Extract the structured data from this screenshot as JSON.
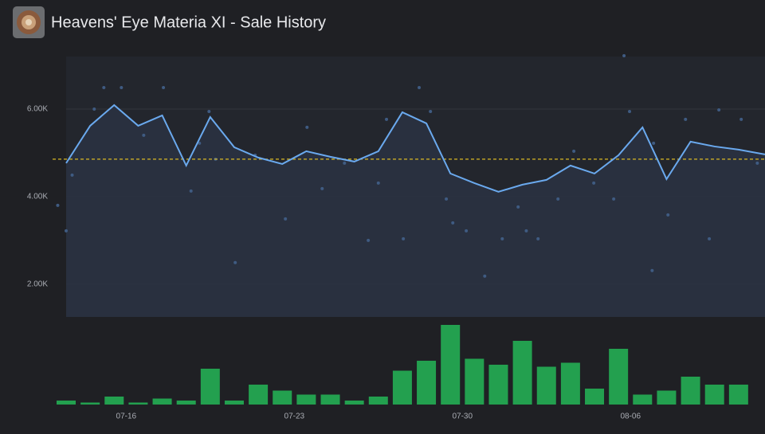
{
  "chart_data": {
    "type": "line",
    "title": "Heavens' Eye Materia XI - Sale History",
    "xlim": [
      13.5,
      42.6
    ],
    "xticks": [
      {
        "value": 16,
        "label": "07-16"
      },
      {
        "value": 23,
        "label": "07-23"
      },
      {
        "value": 30,
        "label": "07-30"
      },
      {
        "value": 37,
        "label": "08-06"
      }
    ],
    "ylim": [
      1250,
      7200
    ],
    "yticks": [
      {
        "value": 2000,
        "label": "2.00K"
      },
      {
        "value": 4000,
        "label": "4.00K"
      },
      {
        "value": 6000,
        "label": "6.00K"
      }
    ],
    "grid": true,
    "average": 4855,
    "average_color": "#d9b824",
    "line": {
      "color": "#6aa9ee",
      "x": [
        13.5,
        14.5,
        15.5,
        16.5,
        17.5,
        18.5,
        19.5,
        20.5,
        21.5,
        22.5,
        23.5,
        24.5,
        25.5,
        26.5,
        27.5,
        28.5,
        29.5,
        30.5,
        31.5,
        32.5,
        33.5,
        34.5,
        35.5,
        36.5,
        37.5,
        38.5,
        39.5,
        40.5,
        41.5,
        42.6
      ],
      "values": [
        4764,
        5618,
        6091,
        5618,
        5855,
        4709,
        5818,
        5127,
        4891,
        4745,
        5036,
        4909,
        4800,
        5036,
        5927,
        5673,
        4527,
        4309,
        4109,
        4273,
        4382,
        4709,
        4527,
        4945,
        5582,
        4400,
        5255,
        5145,
        5073,
        4964
      ]
    },
    "scatter": {
      "color": "#3f5b82",
      "x": [
        13.15,
        13.5,
        13.75,
        14.67,
        15.07,
        15.8,
        16.73,
        17.55,
        18.7,
        19.05,
        19.45,
        19.72,
        20.54,
        21.37,
        22.63,
        23.53,
        24.16,
        25.09,
        26.08,
        26.5,
        26.84,
        27.54,
        28.2,
        28.67,
        29.33,
        29.6,
        30.16,
        30.93,
        31.66,
        32.32,
        32.66,
        33.15,
        33.98,
        34.64,
        35.47,
        36.3,
        36.73,
        36.96,
        37.9,
        37.96,
        38.56,
        39.29,
        40.28,
        40.68,
        41.61,
        42.28
      ],
      "y": [
        3800,
        3218,
        4491,
        6000,
        6491,
        6491,
        5400,
        6491,
        4127,
        5218,
        5945,
        4855,
        2491,
        4945,
        3491,
        5582,
        4182,
        4764,
        3000,
        4309,
        5764,
        3036,
        6491,
        5945,
        3945,
        3400,
        3218,
        2182,
        3036,
        3764,
        3218,
        3036,
        3945,
        5036,
        4309,
        3945,
        7218,
        5945,
        2309,
        5218,
        3582,
        5764,
        3036,
        5982,
        5764,
        4764
      ]
    },
    "bars": {
      "color": "#23a04f",
      "x": [
        13.5,
        14.5,
        15.5,
        16.5,
        17.5,
        18.5,
        19.5,
        20.5,
        21.5,
        22.5,
        23.5,
        24.5,
        25.5,
        26.5,
        27.5,
        28.5,
        29.5,
        30.5,
        31.5,
        32.5,
        33.5,
        34.5,
        35.5,
        36.5,
        37.5,
        38.5,
        39.5,
        40.5,
        41.5
      ],
      "values": [
        2,
        1,
        4,
        1,
        3,
        2,
        18,
        2,
        10,
        7,
        5,
        5,
        2,
        4,
        17,
        22,
        40,
        23,
        20,
        32,
        19,
        21,
        8,
        28,
        5,
        7,
        14,
        10,
        10
      ]
    }
  }
}
